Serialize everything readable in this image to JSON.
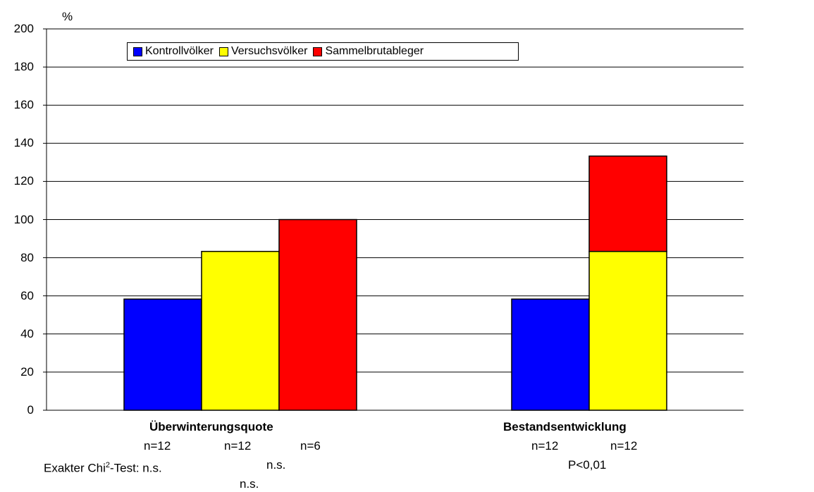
{
  "chart_data": {
    "type": "bar",
    "ylabel": "%",
    "ylim": [
      0,
      200
    ],
    "yticks": [
      "0",
      "20",
      "40",
      "60",
      "80",
      "100",
      "120",
      "140",
      "160",
      "180",
      "200"
    ],
    "grid": true,
    "legend_position": "top-left",
    "series": [
      {
        "name": "Kontrollvölker",
        "color": "#0000FF"
      },
      {
        "name": "Versuchsvölker",
        "color": "#FFFF00"
      },
      {
        "name": "Sammelbrutableger",
        "color": "#FF0000"
      }
    ],
    "groups": [
      {
        "label": "Überwinterungsquote",
        "bars": [
          {
            "series": "Kontrollvölker",
            "value": 58.3
          },
          {
            "series": "Versuchsvölker",
            "value": 83.3
          },
          {
            "series": "Sammelbrutableger",
            "value": 100
          }
        ],
        "n_labels": [
          "n=12",
          "n=12",
          "n=6"
        ]
      },
      {
        "label": "Bestandsentwicklung",
        "bars": [
          {
            "series": "Kontrollvölker",
            "value": 58.3
          },
          {
            "series": "Versuchsvölker",
            "value": 83.3,
            "stack": [
              {
                "series": "Versuchsvölker",
                "value": 83.3
              },
              {
                "series": "Sammelbrutableger",
                "value": 50
              }
            ]
          }
        ],
        "n_labels": [
          "n=12",
          "n=12"
        ]
      }
    ],
    "annotations": {
      "test_prefix": "Exakter Chi",
      "test_sup": "2",
      "test_suffix": "-Test: n.s.",
      "ns_1": "n.s.",
      "ns_2": "n.s.",
      "p_value": "P<0,01"
    }
  }
}
